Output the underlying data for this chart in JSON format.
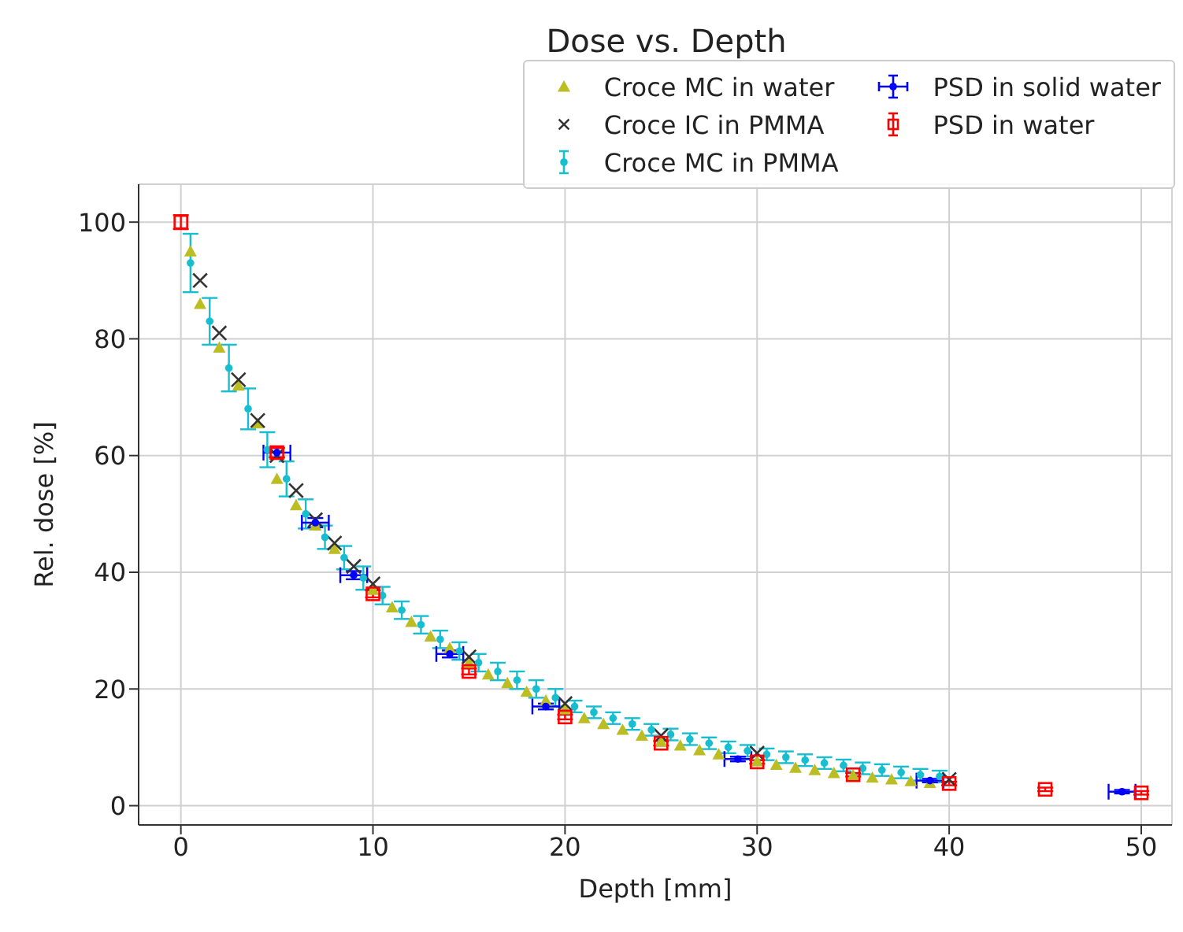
{
  "chart_data": {
    "type": "scatter",
    "title": "Dose vs. Depth",
    "xlabel": "Depth [mm]",
    "ylabel": "Rel. dose [%]",
    "xlim": [
      -2.2,
      51.6
    ],
    "xticks": [
      0,
      10,
      20,
      30,
      40,
      50
    ],
    "ylim": [
      -3.3,
      106.5
    ],
    "yticks": [
      0,
      20,
      40,
      60,
      80,
      100
    ],
    "grid": true,
    "legend": "top right",
    "series": [
      {
        "name": "Croce MC in water",
        "color": "#bcbd22",
        "marker": "triangle",
        "x": [
          0.5,
          1,
          2,
          3,
          4,
          5,
          6,
          7,
          8,
          9,
          10,
          11,
          12,
          13,
          14,
          15,
          16,
          17,
          18,
          19,
          20,
          21,
          22,
          23,
          24,
          25,
          26,
          27,
          28,
          29,
          30,
          31,
          32,
          33,
          34,
          35,
          36,
          37,
          38,
          39
        ],
        "values": [
          95,
          86,
          78.5,
          72,
          65.5,
          56,
          51.5,
          48,
          44,
          null,
          37,
          34,
          31.5,
          29,
          27,
          24.5,
          22.5,
          21,
          19.5,
          18,
          16.5,
          15,
          14,
          13,
          12,
          11,
          10.3,
          9.5,
          8.8,
          null,
          7.6,
          7,
          6.5,
          6.1,
          5.6,
          5.2,
          4.8,
          4.5,
          4.2,
          3.9
        ]
      },
      {
        "name": "Croce IC in PMMA",
        "color": "#333333",
        "marker": "cross",
        "x": [
          1,
          2,
          3,
          4,
          5,
          6,
          7,
          8,
          9,
          10,
          15,
          20,
          25,
          30,
          40
        ],
        "values": [
          90,
          81,
          73,
          66,
          60,
          54,
          49,
          45,
          41,
          38,
          25.5,
          17.5,
          12,
          9,
          4.5
        ]
      },
      {
        "name": "Croce MC in PMMA",
        "color": "#17becf",
        "marker": "circle",
        "x": [
          0.5,
          1.5,
          2.5,
          3.5,
          4.5,
          5.5,
          6.5,
          7.5,
          8.5,
          9.5,
          10.5,
          11.5,
          12.5,
          13.5,
          14.5,
          15.5,
          16.5,
          17.5,
          18.5,
          19.5,
          20.5,
          21.5,
          22.5,
          23.5,
          24.5,
          25.5,
          26.5,
          27.5,
          28.5,
          29.5,
          30.5,
          31.5,
          32.5,
          33.5,
          34.5,
          35.5,
          36.5,
          37.5,
          38.5,
          39.5
        ],
        "values": [
          93,
          83,
          75,
          68,
          61,
          56,
          50,
          46,
          42.5,
          39,
          36,
          33.5,
          31,
          28.5,
          26.5,
          24.5,
          23,
          21.5,
          20,
          18.5,
          17,
          16,
          15,
          14,
          13,
          12.2,
          11.4,
          10.7,
          10,
          9.4,
          8.8,
          8.3,
          7.8,
          7.3,
          6.9,
          6.4,
          6.1,
          5.7,
          5.3,
          5
        ],
        "errors": [
          5,
          4,
          4,
          3.5,
          3,
          3,
          2.5,
          2,
          2,
          2,
          1.5,
          1.5,
          1.5,
          1.5,
          1.5,
          1.5,
          1.5,
          1.5,
          1.5,
          1.5,
          1,
          1,
          1,
          1,
          1,
          1,
          1,
          1,
          1,
          1,
          1,
          1,
          1,
          1,
          1,
          1,
          1,
          1,
          1,
          1
        ]
      },
      {
        "name": "PSD in solid water",
        "color": "#0000ff",
        "marker": "circle",
        "x": [
          5,
          7,
          9,
          14,
          19,
          29,
          39,
          49
        ],
        "values": [
          60.5,
          48.5,
          39.5,
          26,
          17,
          8,
          4.3,
          2.4
        ],
        "errors": [
          0.8,
          0.8,
          0.7,
          0.6,
          0.5,
          0.4,
          0.3,
          0.3
        ],
        "xerrors": [
          0.7,
          0.7,
          0.7,
          0.7,
          0.7,
          0.7,
          0.7,
          0.7
        ]
      },
      {
        "name": "PSD in water",
        "color": "#ff0000",
        "marker": "square",
        "x": [
          0,
          5,
          10,
          15,
          20,
          25,
          30,
          35,
          40,
          45,
          50
        ],
        "values": [
          100,
          60.5,
          36.3,
          23,
          15.2,
          10.7,
          7.5,
          5.3,
          3.8,
          2.8,
          2.2
        ],
        "errors": [
          1.2,
          0.8,
          0.6,
          0.5,
          0.4,
          0.4,
          0.3,
          0.3,
          0.3,
          0.3,
          0.3
        ]
      }
    ]
  }
}
